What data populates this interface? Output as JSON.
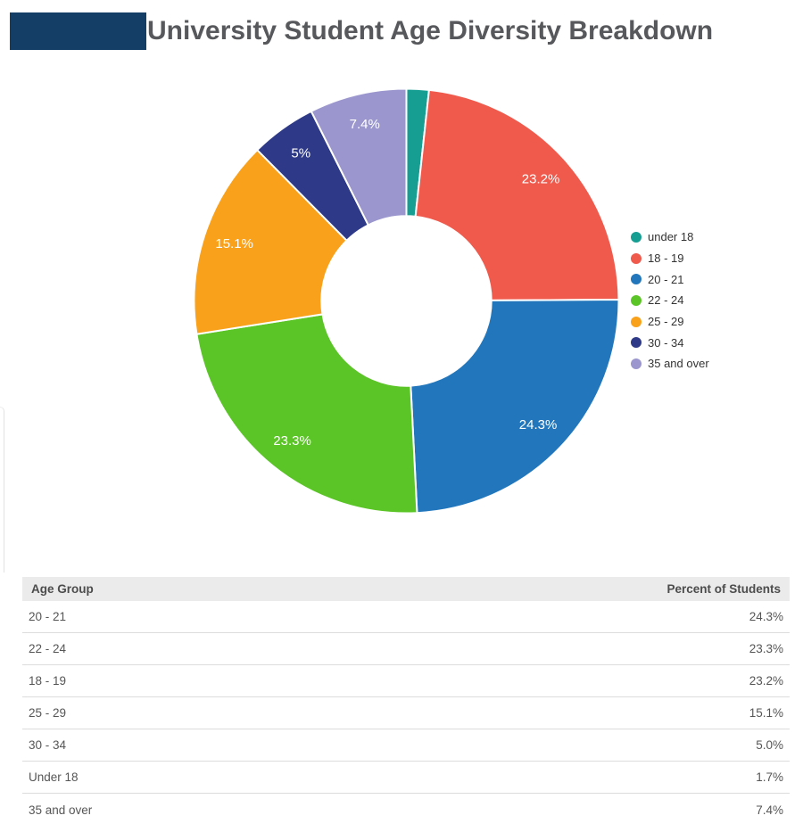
{
  "header": {
    "title": "University Student Age Diversity Breakdown",
    "title_color": "#57585b",
    "logo_block_color": "#153e66"
  },
  "chart_data": {
    "type": "pie",
    "subtype": "donut",
    "title": "University Student Age Diversity Breakdown",
    "start_angle_deg": 0,
    "direction": "clockwise",
    "inner_radius_ratio": 0.4,
    "slice_border_color": "#ffffff",
    "data_label_color": "#ffffff",
    "legend_position": "right",
    "slices": [
      {
        "label": "under 18",
        "value": 1.7,
        "color": "#179e93",
        "display_label": ""
      },
      {
        "label": "18 - 19",
        "value": 23.2,
        "color": "#ef5a4d",
        "display_label": "23.2%"
      },
      {
        "label": "20 - 21",
        "value": 24.3,
        "color": "#2277bc",
        "display_label": "24.3%"
      },
      {
        "label": "22 - 24",
        "value": 23.3,
        "color": "#5bc427",
        "display_label": "23.3%"
      },
      {
        "label": "25 - 29",
        "value": 15.1,
        "color": "#f9a11b",
        "display_label": "15.1%"
      },
      {
        "label": "30 - 34",
        "value": 5.0,
        "color": "#2e3a87",
        "display_label": "5%"
      },
      {
        "label": "35 and over",
        "value": 7.4,
        "color": "#9b97ce",
        "display_label": "7.4%"
      }
    ]
  },
  "table": {
    "columns": [
      "Age Group",
      "Percent of Students"
    ],
    "rows": [
      {
        "age_group": "20 - 21",
        "percent": "24.3%"
      },
      {
        "age_group": "22 - 24",
        "percent": "23.3%"
      },
      {
        "age_group": "18 - 19",
        "percent": "23.2%"
      },
      {
        "age_group": "25 - 29",
        "percent": "15.1%"
      },
      {
        "age_group": "30 - 34",
        "percent": "5.0%"
      },
      {
        "age_group": "Under 18",
        "percent": "1.7%"
      },
      {
        "age_group": "35 and over",
        "percent": "7.4%"
      }
    ]
  }
}
